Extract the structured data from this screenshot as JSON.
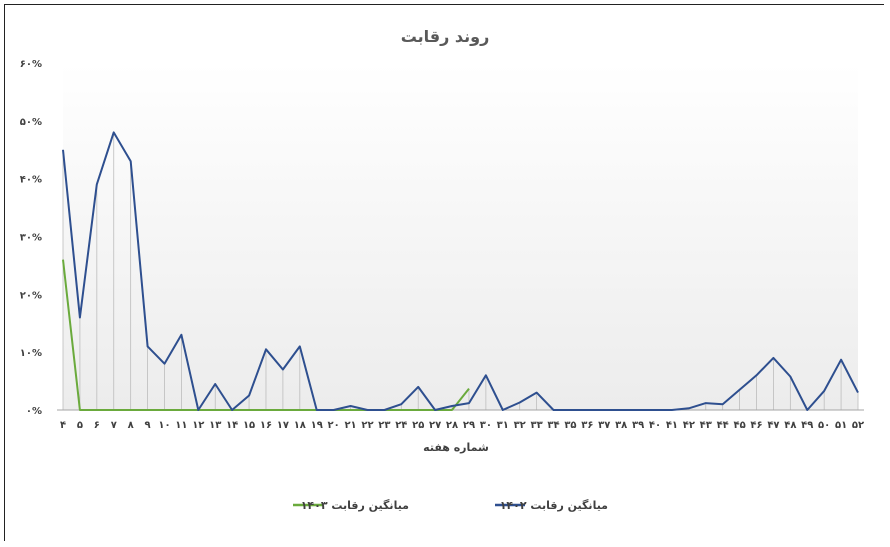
{
  "chart_data": {
    "type": "line",
    "title": "روند رقابت",
    "xlabel": "شماره هفته",
    "ylabel": "",
    "ylim": [
      0,
      0.6
    ],
    "y_ticks": [
      "۰%",
      "۱۰%",
      "۲۰%",
      "۳۰%",
      "۴۰%",
      "۵۰%",
      "۶۰%"
    ],
    "grid": false,
    "legend_position": "bottom",
    "categories": [
      "۴",
      "۵",
      "۶",
      "۷",
      "۸",
      "۹",
      "۱۰",
      "۱۱",
      "۱۲",
      "۱۳",
      "۱۴",
      "۱۵",
      "۱۶",
      "۱۷",
      "۱۸",
      "۱۹",
      "۲۰",
      "۲۱",
      "۲۲",
      "۲۳",
      "۲۴",
      "۲۵",
      "۲۷",
      "۲۸",
      "۲۹",
      "۳۰",
      "۳۱",
      "۳۲",
      "۳۳",
      "۳۴",
      "۳۵",
      "۳۶",
      "۳۷",
      "۳۸",
      "۳۹",
      "۴۰",
      "۴۱",
      "۴۲",
      "۴۳",
      "۴۴",
      "۴۵",
      "۴۶",
      "۴۷",
      "۴۸",
      "۴۹",
      "۵۰",
      "۵۱",
      "۵۲"
    ],
    "series": [
      {
        "name": "میانگین رقابت ۱۴۰۲",
        "color": "#2E4F8F",
        "values": [
          0.45,
          0.16,
          0.39,
          0.48,
          0.43,
          0.11,
          0.08,
          0.13,
          0.0,
          0.045,
          0.0,
          0.025,
          0.105,
          0.07,
          0.11,
          0.0,
          0.0,
          0.007,
          0.0,
          0.0,
          0.01,
          0.04,
          0.0,
          0.007,
          0.012,
          0.06,
          0.0,
          0.013,
          0.03,
          0.0,
          0.0,
          0.0,
          0.0,
          0.0,
          0.0,
          0.0,
          0.0,
          0.003,
          0.012,
          0.01,
          0.035,
          0.06,
          0.09,
          0.058,
          0.0,
          0.033,
          0.087,
          0.03
        ]
      },
      {
        "name": "میانگین رقابت ۱۴۰۳",
        "color": "#6AAA3C",
        "values": [
          0.26,
          0.0,
          0.0,
          0.0,
          0.0,
          0.0,
          0.0,
          0.0,
          0.0,
          0.0,
          0.0,
          0.0,
          0.0,
          0.0,
          0.0,
          0.0,
          0.0,
          0.0,
          0.0,
          0.0,
          0.0,
          0.0,
          0.0,
          0.0,
          0.037,
          null,
          null,
          null,
          null,
          null,
          null,
          null,
          null,
          null,
          null,
          null,
          null,
          null,
          null,
          null,
          null,
          null,
          null,
          null,
          null,
          null,
          null,
          null
        ]
      }
    ]
  }
}
